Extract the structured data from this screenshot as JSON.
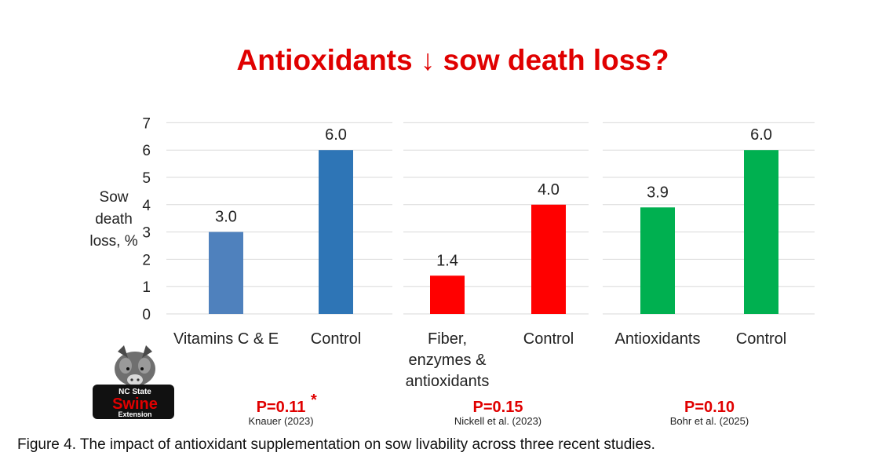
{
  "chart_data": {
    "type": "bar",
    "title": "Antioxidants ↓ sow death loss?",
    "ylabel": [
      "Sow",
      "death",
      "loss, %"
    ],
    "ylim": [
      0,
      7
    ],
    "yticks": [
      0,
      1,
      2,
      3,
      4,
      5,
      6,
      7
    ],
    "grid": true,
    "groups": [
      {
        "bars": [
          {
            "category": [
              "Vitamins C & E"
            ],
            "value": 3.0,
            "label": "3.0",
            "color": "#4f81bd"
          },
          {
            "category": [
              "Control"
            ],
            "value": 6.0,
            "label": "6.0",
            "color": "#2e75b6"
          }
        ],
        "p_value": "P=0.11",
        "p_marker": "*",
        "citation": "Knauer (2023)"
      },
      {
        "bars": [
          {
            "category": [
              "Fiber,",
              "enzymes &",
              "antioxidants"
            ],
            "value": 1.4,
            "label": "1.4",
            "color": "#ff0000"
          },
          {
            "category": [
              "Control"
            ],
            "value": 4.0,
            "label": "4.0",
            "color": "#ff0000"
          }
        ],
        "p_value": "P=0.15",
        "p_marker": "",
        "citation": "Nickell et al. (2023)"
      },
      {
        "bars": [
          {
            "category": [
              "Antioxidants"
            ],
            "value": 3.9,
            "label": "3.9",
            "color": "#00b050"
          },
          {
            "category": [
              "Control"
            ],
            "value": 6.0,
            "label": "6.0",
            "color": "#00b050"
          }
        ],
        "p_value": "P=0.10",
        "p_marker": "",
        "citation": "Bohr et al. (2025)"
      }
    ]
  },
  "logo": {
    "line1": "NC State",
    "line2": "Swine",
    "line3": "Extension"
  },
  "caption": "Figure 4. The impact of antioxidant supplementation on sow livability across three recent studies."
}
